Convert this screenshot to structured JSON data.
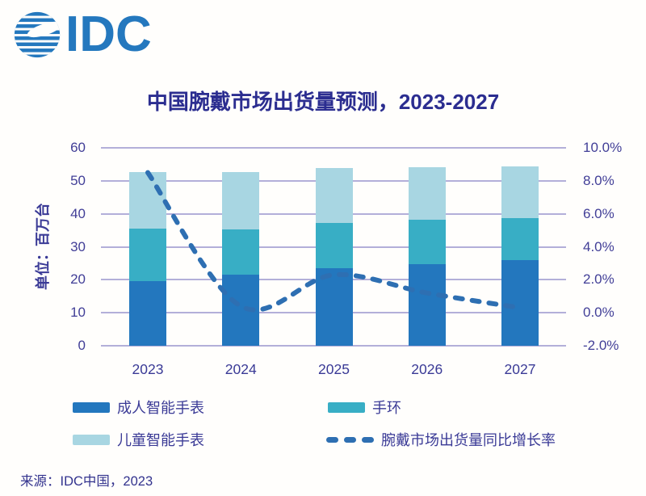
{
  "logo": {
    "text": "IDC",
    "color": "#2478be"
  },
  "title": "中国腕戴市场出货量预测，2023-2027",
  "y_axis_title": "单位：百万台",
  "source": "来源：IDC中国，2023",
  "legend": [
    {
      "label": "成人智能手表",
      "color": "#2377be",
      "type": "box"
    },
    {
      "label": "手环",
      "color": "#38aec5",
      "type": "box"
    },
    {
      "label": "儿童智能手表",
      "color": "#a8d6e2",
      "type": "box"
    },
    {
      "label": "腕戴市场出货量同比增长率",
      "color": "#2e6fb2",
      "type": "dash"
    }
  ],
  "chart_data": {
    "type": "bar",
    "subtype": "stacked-bars-with-line",
    "title": "中国腕戴市场出货量预测，2023-2027",
    "ylabel": "单位：百万台",
    "categories": [
      "2023",
      "2024",
      "2025",
      "2026",
      "2027"
    ],
    "series": [
      {
        "name": "成人智能手表",
        "type": "bar",
        "color": "#2377be",
        "values": [
          19.7,
          21.6,
          23.4,
          24.8,
          25.9
        ]
      },
      {
        "name": "手环",
        "type": "bar",
        "color": "#38aec5",
        "values": [
          15.8,
          13.7,
          13.8,
          13.3,
          12.8
        ]
      },
      {
        "name": "儿童智能手表",
        "type": "bar",
        "color": "#a8d6e2",
        "values": [
          17.2,
          17.3,
          16.8,
          16.1,
          15.7
        ]
      },
      {
        "name": "腕戴市场出货量同比增长率",
        "type": "line",
        "axis": "right",
        "color": "#2e6fb2",
        "style": "dashed-smooth",
        "values": [
          8.5,
          0.4,
          2.3,
          1.2,
          0.3
        ]
      }
    ],
    "left_axis": {
      "min": 0,
      "max": 60,
      "ticks": [
        "60",
        "50",
        "40",
        "30",
        "20",
        "10",
        "0"
      ]
    },
    "right_axis": {
      "min": -2,
      "max": 10,
      "ticks": [
        "10.0%",
        "8.0%",
        "6.0%",
        "4.0%",
        "2.0%",
        "0.0%",
        "-2.0%"
      ]
    },
    "grid": true,
    "legend_position": "bottom"
  }
}
